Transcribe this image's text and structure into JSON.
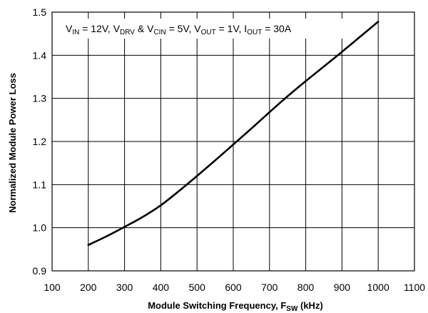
{
  "chart_data": {
    "type": "line",
    "xlabel": "Module Switching Frequency, F",
    "xlabel_sub": "SW",
    "xlabel_suffix": " (kHz)",
    "ylabel": "Normalized Module Power Loss",
    "xlim": [
      100,
      1100
    ],
    "ylim": [
      0.9,
      1.5
    ],
    "xticks": [
      100,
      200,
      300,
      400,
      500,
      600,
      700,
      800,
      900,
      1000,
      1100
    ],
    "yticks": [
      "0.9",
      "1.0",
      "1.1",
      "1.2",
      "1.3",
      "1.4",
      "1.5"
    ],
    "grid": true,
    "annotation": [
      {
        "t": "V",
        "sub": false
      },
      {
        "t": "IN",
        "sub": true
      },
      {
        "t": " = 12V, V",
        "sub": false
      },
      {
        "t": "DRV",
        "sub": true
      },
      {
        "t": " & V",
        "sub": false
      },
      {
        "t": "CIN",
        "sub": true
      },
      {
        "t": " = 5V, V",
        "sub": false
      },
      {
        "t": "OUT",
        "sub": true
      },
      {
        "t": " = 1V, I",
        "sub": false
      },
      {
        "t": "OUT",
        "sub": true
      },
      {
        "t": " = 30A",
        "sub": false
      }
    ],
    "series": [
      {
        "color": "#000000",
        "x": [
          200,
          250,
          300,
          350,
          400,
          450,
          500,
          550,
          600,
          650,
          700,
          750,
          800,
          850,
          900,
          950,
          1000
        ],
        "y": [
          0.96,
          0.98,
          1.002,
          1.025,
          1.052,
          1.085,
          1.12,
          1.156,
          1.193,
          1.23,
          1.268,
          1.305,
          1.34,
          1.374,
          1.408,
          1.443,
          1.478
        ]
      }
    ]
  }
}
